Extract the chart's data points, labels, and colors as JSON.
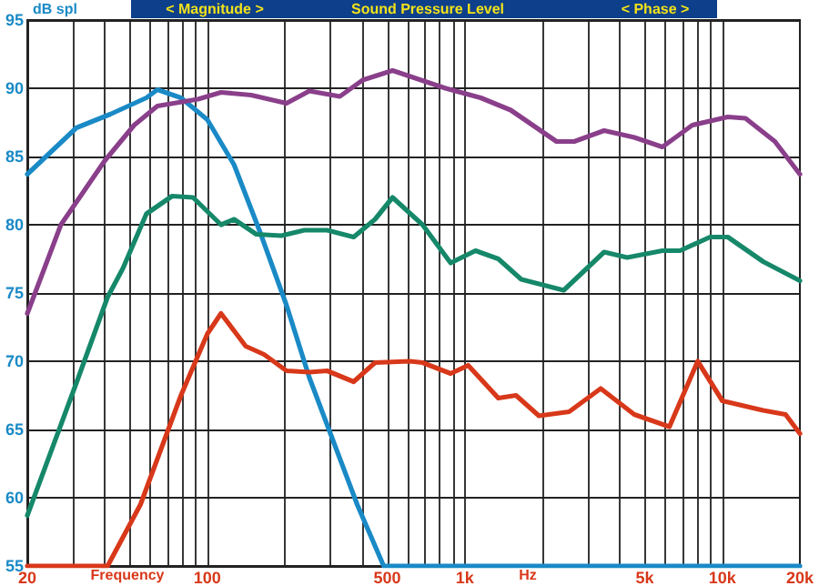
{
  "chart_data": {
    "type": "line",
    "title": "Sound Pressure Level",
    "xlabel": "Frequency",
    "ylabel": "dB spl",
    "annotations": [
      "< Magnitude >",
      "< Phase >",
      "Hz"
    ],
    "log": "x",
    "grid": true,
    "marker": "none",
    "line_style": "solid",
    "xlim": [
      20,
      20000
    ],
    "ylim": [
      55,
      95
    ],
    "xticks": [
      20,
      {
        "value": 30,
        "label": null
      },
      {
        "value": 40,
        "label": null
      },
      {
        "value": 50,
        "label": null
      },
      {
        "value": 60,
        "label": null
      },
      {
        "value": 70,
        "label": null
      },
      {
        "value": 80,
        "label": null
      },
      {
        "value": 90,
        "label": null
      },
      100,
      {
        "value": 200,
        "label": null
      },
      {
        "value": 300,
        "label": null
      },
      {
        "value": 400,
        "label": null
      },
      500,
      {
        "value": 600,
        "label": null
      },
      {
        "value": 700,
        "label": null
      },
      {
        "value": 800,
        "label": null
      },
      {
        "value": 900,
        "label": null
      },
      {
        "value": 1000,
        "label": "1k"
      },
      {
        "value": 2000,
        "label": null
      },
      {
        "value": 3000,
        "label": null
      },
      {
        "value": 4000,
        "label": null
      },
      {
        "value": 5000,
        "label": "5k"
      },
      {
        "value": 6000,
        "label": null
      },
      {
        "value": 7000,
        "label": null
      },
      {
        "value": 8000,
        "label": null
      },
      {
        "value": 9000,
        "label": null
      },
      {
        "value": 10000,
        "label": "10k"
      },
      {
        "value": 20000,
        "label": "20k"
      }
    ],
    "yticks": [
      55,
      60,
      65,
      70,
      75,
      80,
      85,
      90,
      95
    ],
    "series": [
      {
        "color": "#1a8ac6",
        "x": [
          20,
          31,
          42,
          58,
          64,
          79,
          100,
          127,
          160,
          203,
          249,
          382,
          484,
          20000
        ],
        "values": [
          83.7,
          87.1,
          88.1,
          89.3,
          89.9,
          89.3,
          87.7,
          84.4,
          79.5,
          74.1,
          68.8,
          59.5,
          55,
          55
        ]
      },
      {
        "color": "#8a3f8a",
        "x": [
          20,
          27,
          40,
          52,
          64,
          92,
          113,
          148,
          203,
          249,
          327,
          401,
          524,
          841,
          1153,
          1507,
          2270,
          2660,
          3475,
          4550,
          5850,
          7650,
          10500,
          12300,
          16000,
          20000
        ],
        "values": [
          73.5,
          80,
          84.7,
          87.3,
          88.7,
          89.2,
          89.7,
          89.5,
          88.9,
          89.8,
          89.4,
          90.6,
          91.3,
          90,
          89.3,
          88.4,
          86.1,
          86.1,
          86.9,
          86.4,
          85.7,
          87.3,
          87.9,
          87.8,
          86.1,
          83.7
        ]
      },
      {
        "color": "#16886a",
        "x": [
          20,
          31,
          41,
          47,
          58,
          73,
          88,
          113,
          127,
          155,
          194,
          238,
          292,
          370,
          448,
          524,
          685,
          881,
          1100,
          1349,
          1656,
          2420,
          3475,
          4270,
          5850,
          6850,
          8960,
          10500,
          14400,
          20000
        ],
        "values": [
          58.7,
          68.4,
          74.7,
          76.8,
          80.8,
          82.1,
          82,
          80,
          80.4,
          79.3,
          79.2,
          79.6,
          79.6,
          79.1,
          80.4,
          82,
          80,
          77.2,
          78.1,
          77.5,
          76,
          75.2,
          78,
          77.6,
          78.1,
          78.1,
          79.1,
          79.1,
          77.3,
          75.9
        ]
      },
      {
        "color": "#d8381a",
        "x": [
          20,
          41,
          55,
          79,
          100,
          113,
          141,
          166,
          203,
          249,
          292,
          370,
          448,
          613,
          685,
          881,
          1030,
          1349,
          1580,
          1940,
          2540,
          3370,
          4550,
          6230,
          8020,
          10000,
          14400,
          17600,
          20000
        ],
        "values": [
          55,
          55,
          59.5,
          67.5,
          72,
          73.5,
          71.1,
          70.5,
          69.3,
          69.2,
          69.3,
          68.5,
          69.9,
          70,
          69.9,
          69.1,
          69.7,
          67.3,
          67.5,
          66,
          66.3,
          68,
          66.1,
          65.2,
          70,
          67.1,
          66.4,
          66.1,
          64.7
        ]
      }
    ]
  }
}
